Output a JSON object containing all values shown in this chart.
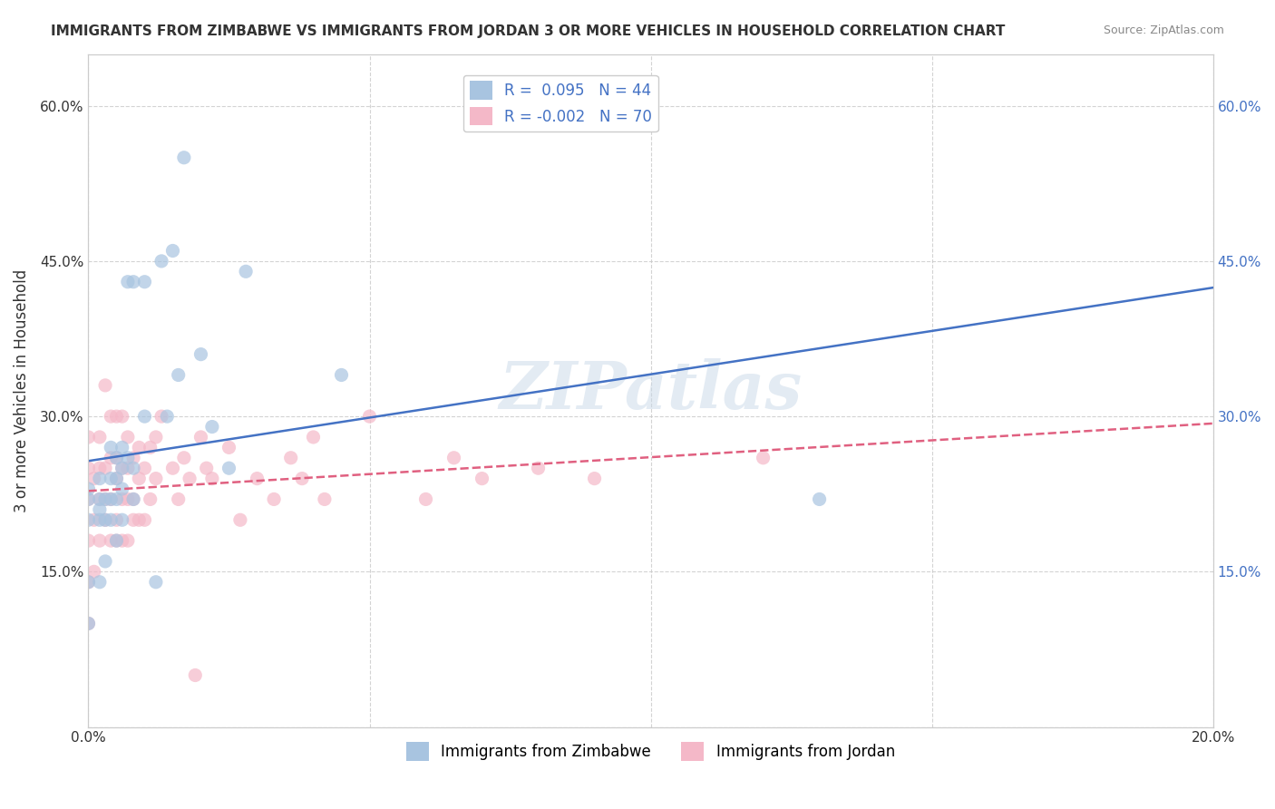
{
  "title": "IMMIGRANTS FROM ZIMBABWE VS IMMIGRANTS FROM JORDAN 3 OR MORE VEHICLES IN HOUSEHOLD CORRELATION CHART",
  "source": "Source: ZipAtlas.com",
  "xlabel_bottom": [
    "Immigrants from Zimbabwe",
    "Immigrants from Jordan"
  ],
  "ylabel": "3 or more Vehicles in Household",
  "xlim": [
    0.0,
    0.2
  ],
  "ylim": [
    0.0,
    0.65
  ],
  "xticks": [
    0.0,
    0.05,
    0.1,
    0.15,
    0.2
  ],
  "xtick_labels": [
    "0.0%",
    "",
    "",
    "",
    "20.0%"
  ],
  "yticks": [
    0.0,
    0.15,
    0.3,
    0.45,
    0.6
  ],
  "ytick_labels": [
    "",
    "15.0%",
    "30.0%",
    "45.0%",
    "60.0%"
  ],
  "right_ytick_labels": [
    "",
    "15.0%",
    "30.0%",
    "45.0%",
    "60.0%"
  ],
  "R_zimbabwe": 0.095,
  "N_zimbabwe": 44,
  "R_jordan": -0.002,
  "N_jordan": 70,
  "color_zimbabwe": "#a8c4e0",
  "color_jordan": "#f4b8c8",
  "line_color_zimbabwe": "#4472c4",
  "line_color_jordan": "#e06080",
  "watermark": "ZIPatlas",
  "grid_color": "#c8c8c8",
  "background_color": "#ffffff",
  "scatter_zimbabwe_x": [
    0.0,
    0.0,
    0.0,
    0.0,
    0.0,
    0.002,
    0.002,
    0.002,
    0.002,
    0.002,
    0.003,
    0.003,
    0.003,
    0.004,
    0.004,
    0.004,
    0.004,
    0.005,
    0.005,
    0.005,
    0.005,
    0.006,
    0.006,
    0.006,
    0.006,
    0.007,
    0.007,
    0.008,
    0.008,
    0.008,
    0.01,
    0.01,
    0.012,
    0.013,
    0.014,
    0.015,
    0.016,
    0.017,
    0.02,
    0.022,
    0.025,
    0.028,
    0.045,
    0.13
  ],
  "scatter_zimbabwe_y": [
    0.1,
    0.14,
    0.2,
    0.22,
    0.23,
    0.14,
    0.2,
    0.21,
    0.22,
    0.24,
    0.16,
    0.2,
    0.22,
    0.2,
    0.22,
    0.24,
    0.27,
    0.18,
    0.22,
    0.24,
    0.26,
    0.2,
    0.23,
    0.25,
    0.27,
    0.26,
    0.43,
    0.22,
    0.25,
    0.43,
    0.3,
    0.43,
    0.14,
    0.45,
    0.3,
    0.46,
    0.34,
    0.55,
    0.36,
    0.29,
    0.25,
    0.44,
    0.34,
    0.22
  ],
  "scatter_jordan_x": [
    0.0,
    0.0,
    0.0,
    0.0,
    0.0,
    0.0,
    0.001,
    0.001,
    0.001,
    0.002,
    0.002,
    0.002,
    0.002,
    0.003,
    0.003,
    0.003,
    0.003,
    0.004,
    0.004,
    0.004,
    0.004,
    0.005,
    0.005,
    0.005,
    0.005,
    0.005,
    0.006,
    0.006,
    0.006,
    0.006,
    0.007,
    0.007,
    0.007,
    0.007,
    0.008,
    0.008,
    0.008,
    0.009,
    0.009,
    0.009,
    0.01,
    0.01,
    0.011,
    0.011,
    0.012,
    0.012,
    0.013,
    0.015,
    0.016,
    0.017,
    0.018,
    0.019,
    0.02,
    0.021,
    0.022,
    0.025,
    0.027,
    0.03,
    0.033,
    0.036,
    0.038,
    0.04,
    0.042,
    0.05,
    0.06,
    0.065,
    0.07,
    0.08,
    0.09,
    0.12
  ],
  "scatter_jordan_y": [
    0.1,
    0.14,
    0.18,
    0.22,
    0.25,
    0.28,
    0.15,
    0.2,
    0.24,
    0.18,
    0.22,
    0.25,
    0.28,
    0.2,
    0.22,
    0.25,
    0.33,
    0.18,
    0.22,
    0.26,
    0.3,
    0.18,
    0.2,
    0.24,
    0.26,
    0.3,
    0.18,
    0.22,
    0.25,
    0.3,
    0.18,
    0.22,
    0.25,
    0.28,
    0.2,
    0.22,
    0.26,
    0.2,
    0.24,
    0.27,
    0.2,
    0.25,
    0.22,
    0.27,
    0.24,
    0.28,
    0.3,
    0.25,
    0.22,
    0.26,
    0.24,
    0.05,
    0.28,
    0.25,
    0.24,
    0.27,
    0.2,
    0.24,
    0.22,
    0.26,
    0.24,
    0.28,
    0.22,
    0.3,
    0.22,
    0.26,
    0.24,
    0.25,
    0.24,
    0.26
  ]
}
